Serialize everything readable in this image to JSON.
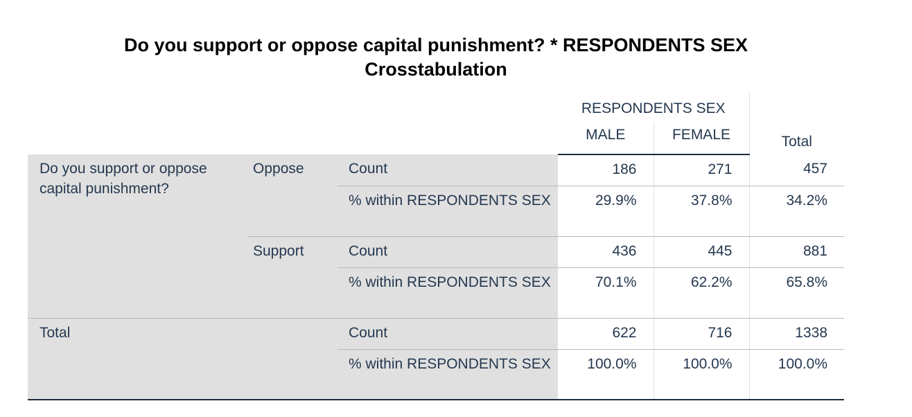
{
  "title": {
    "line1": "Do you support or oppose capital punishment? * RESPONDENTS SEX",
    "line2": "Crosstabulation"
  },
  "header": {
    "group_label": "RESPONDENTS SEX",
    "columns": [
      "MALE",
      "FEMALE"
    ],
    "total_label": "Total"
  },
  "rows": {
    "row_variable": "Do you support or oppose capital punishment?",
    "oppose": {
      "label": "Oppose",
      "count_label": "Count",
      "pct_label": "% within RESPONDENTS SEX",
      "count": [
        "186",
        "271",
        "457"
      ],
      "pct": [
        "29.9%",
        "37.8%",
        "34.2%"
      ]
    },
    "support": {
      "label": "Support",
      "count_label": "Count",
      "pct_label": "% within RESPONDENTS SEX",
      "count": [
        "436",
        "445",
        "881"
      ],
      "pct": [
        "70.1%",
        "62.2%",
        "65.8%"
      ]
    },
    "total": {
      "label": "Total",
      "count_label": "Count",
      "pct_label": "% within RESPONDENTS SEX",
      "count": [
        "622",
        "716",
        "1338"
      ],
      "pct": [
        "100.0%",
        "100.0%",
        "100.0%"
      ]
    }
  },
  "colors": {
    "label_background": "#e0e0e0",
    "text": "#25384f",
    "rule": "#1e2b3c"
  }
}
